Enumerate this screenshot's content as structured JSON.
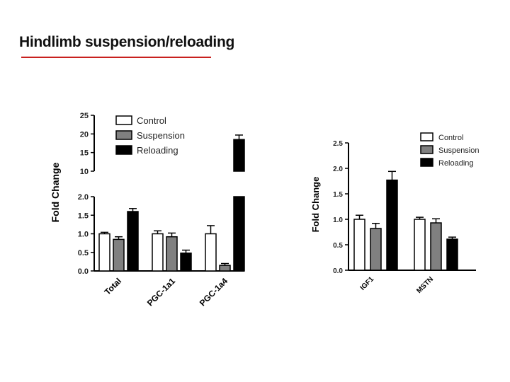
{
  "slide": {
    "title": "Hindlimb suspension/reloading"
  },
  "colors": {
    "accent": "#c8201e",
    "control": "#ffffff",
    "suspension": "#808080",
    "reloading": "#000000"
  },
  "chart_data": [
    {
      "type": "bar",
      "ylabel": "Fold Change",
      "xlabel": "",
      "broken_axis": true,
      "ylim_lower": [
        0,
        2.0
      ],
      "ylim_upper": [
        10,
        25
      ],
      "yticks_lower": [
        "0.0",
        "0.5",
        "1.0",
        "1.5",
        "2.0"
      ],
      "yticks_upper": [
        "10",
        "15",
        "20",
        "25"
      ],
      "legend": {
        "position": "top",
        "entries": [
          "Control",
          "Suspension",
          "Reloading"
        ]
      },
      "categories": [
        "Total",
        "PGC-1a1",
        "PGC-1a4"
      ],
      "series": [
        {
          "name": "Control",
          "values": [
            1.0,
            1.0,
            1.0
          ],
          "errors": [
            0.04,
            0.08,
            0.22
          ]
        },
        {
          "name": "Suspension",
          "values": [
            0.85,
            0.92,
            0.15
          ],
          "errors": [
            0.07,
            0.1,
            0.05
          ]
        },
        {
          "name": "Reloading",
          "values": [
            1.6,
            0.48,
            18.5
          ],
          "errors": [
            0.08,
            0.08,
            1.2
          ]
        }
      ]
    },
    {
      "type": "bar",
      "ylabel": "Fold Change",
      "xlabel": "",
      "ylim": [
        0,
        2.5
      ],
      "yticks": [
        "0.0",
        "0.5",
        "1.0",
        "1.5",
        "2.0",
        "2.5"
      ],
      "legend": {
        "position": "top-right",
        "entries": [
          "Control",
          "Suspension",
          "Reloading"
        ]
      },
      "categories": [
        "IGF1",
        "MSTN"
      ],
      "series": [
        {
          "name": "Control",
          "values": [
            1.0,
            1.0
          ],
          "errors": [
            0.08,
            0.04
          ]
        },
        {
          "name": "Suspension",
          "values": [
            0.82,
            0.93
          ],
          "errors": [
            0.1,
            0.08
          ]
        },
        {
          "name": "Reloading",
          "values": [
            1.77,
            0.61
          ],
          "errors": [
            0.17,
            0.04
          ]
        }
      ]
    }
  ]
}
